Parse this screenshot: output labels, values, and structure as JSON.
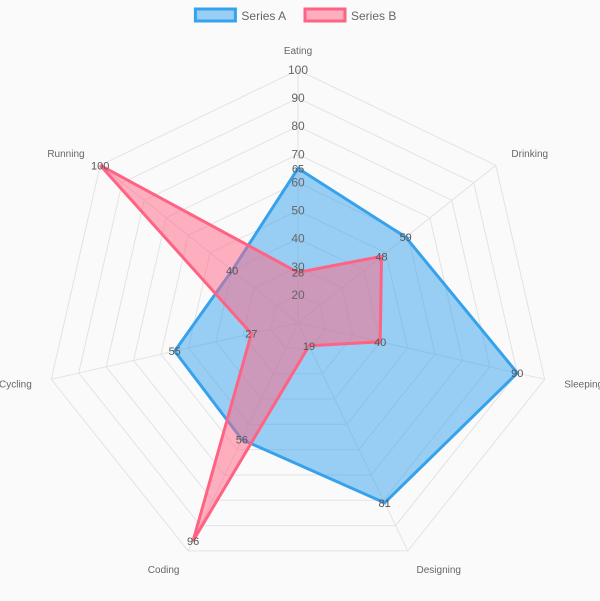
{
  "chart_data": {
    "type": "radar",
    "axes": [
      "Eating",
      "Drinking",
      "Sleeping",
      "Designing",
      "Coding",
      "Cycling",
      "Running"
    ],
    "r_ticks": [
      20,
      30,
      40,
      50,
      60,
      70,
      80,
      90,
      100
    ],
    "r_range": [
      10,
      100
    ],
    "grid": true,
    "legend_position": "top",
    "series": [
      {
        "name": "Series A",
        "values": [
          65,
          59,
          90,
          81,
          56,
          55,
          40
        ],
        "stroke": "#36a2eb",
        "fill": "#36a2eb"
      },
      {
        "name": "Series B",
        "values": [
          28,
          48,
          40,
          19,
          96,
          27,
          100
        ],
        "stroke": "#ff6384",
        "fill": "#ff6384"
      }
    ]
  }
}
